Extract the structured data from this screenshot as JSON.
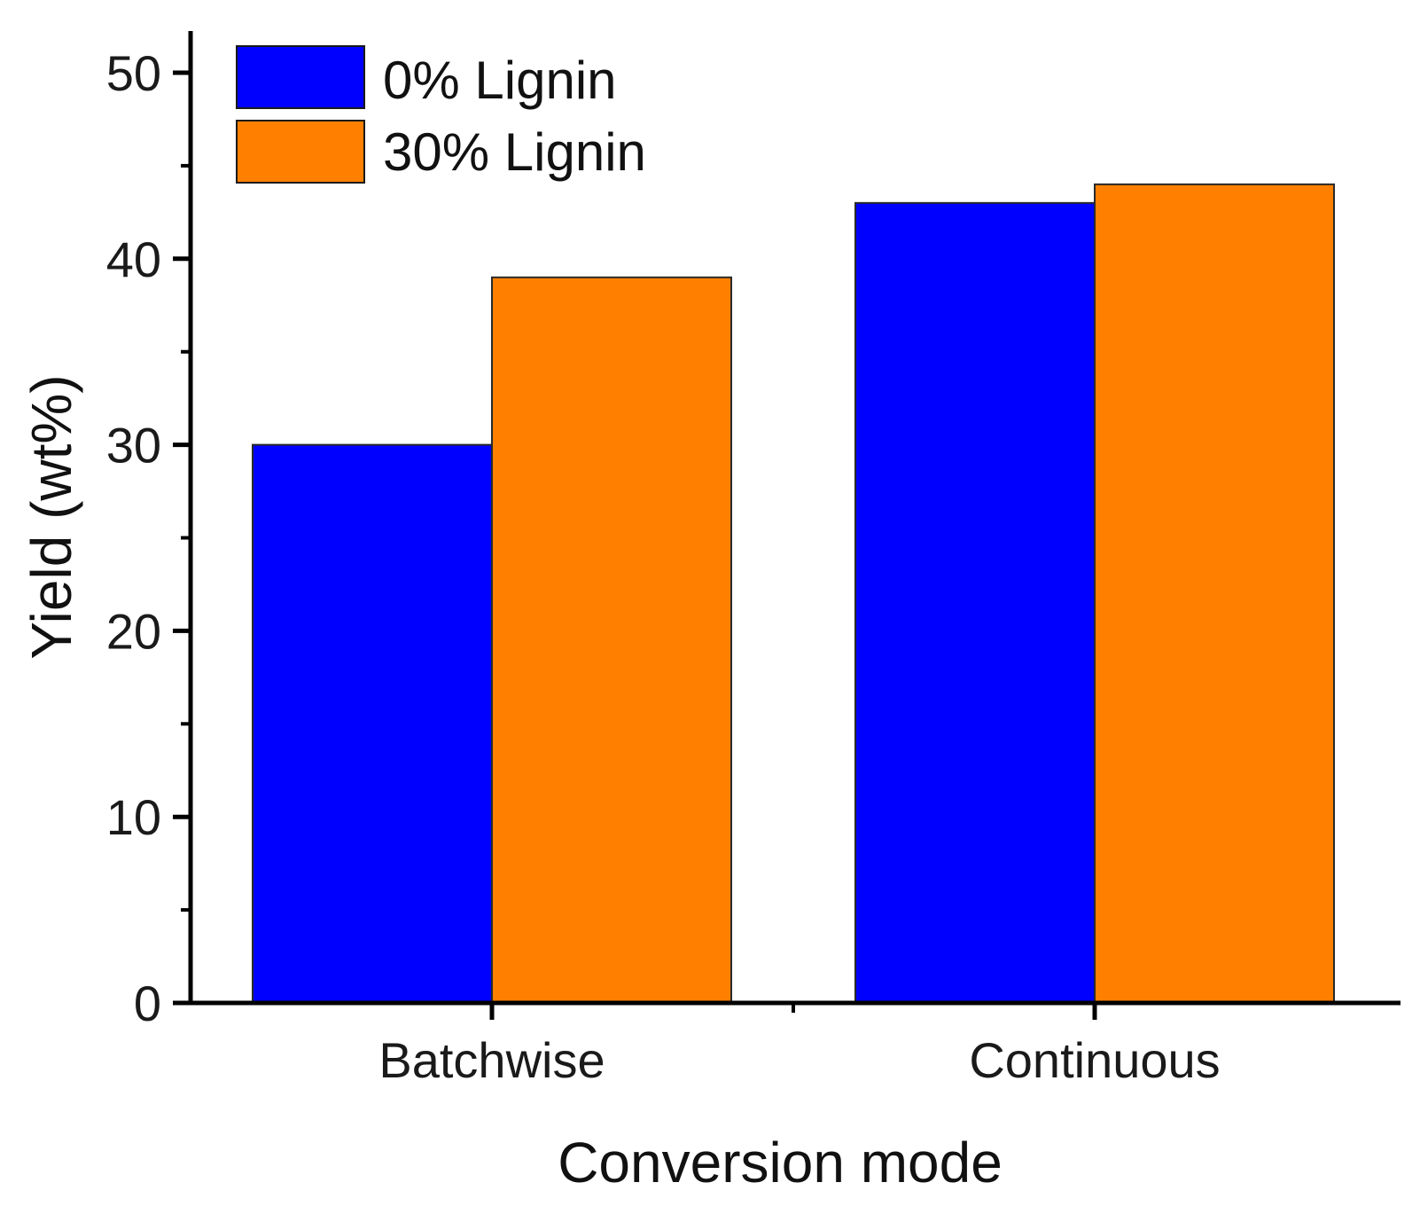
{
  "chart_data": {
    "type": "bar",
    "title": "",
    "xlabel": "Conversion mode",
    "ylabel": "Yield (wt%)",
    "categories": [
      "Batchwise",
      "Continuous"
    ],
    "series": [
      {
        "name": "0% Lignin",
        "values": [
          30,
          43
        ],
        "color": "#0000ff"
      },
      {
        "name": "30% Lignin",
        "values": [
          39,
          44
        ],
        "color": "#ff8000"
      }
    ],
    "ylim": [
      0,
      50
    ],
    "yticks": [
      "0",
      "10",
      "20",
      "30",
      "40",
      "50"
    ],
    "grid": false,
    "legend_position": "top-left"
  }
}
